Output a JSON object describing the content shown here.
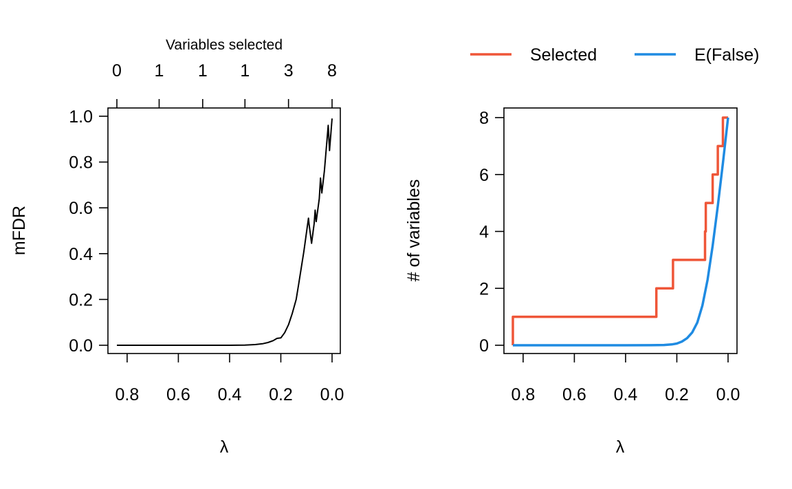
{
  "chart_data": [
    {
      "type": "line",
      "xlabel": "λ",
      "ylabel": "mFDR",
      "top_axis_title": "Variables selected",
      "xlim": [
        0.84,
        0.0
      ],
      "ylim": [
        0.0,
        1.0
      ],
      "x_ticks": [
        "0.8",
        "0.6",
        "0.4",
        "0.2",
        "0.0"
      ],
      "y_ticks": [
        "0.0",
        "0.2",
        "0.4",
        "0.6",
        "0.8",
        "1.0"
      ],
      "top_ticks": [
        {
          "lambda": 0.84,
          "label": "0"
        },
        {
          "lambda": 0.675,
          "label": "1"
        },
        {
          "lambda": 0.505,
          "label": "1"
        },
        {
          "lambda": 0.34,
          "label": "1"
        },
        {
          "lambda": 0.17,
          "label": "3"
        },
        {
          "lambda": 0.0,
          "label": "8"
        }
      ],
      "grid": false,
      "series": [
        {
          "color": "#000000",
          "x": [
            0.84,
            0.6,
            0.4,
            0.34,
            0.3,
            0.27,
            0.25,
            0.23,
            0.215,
            0.2,
            0.185,
            0.17,
            0.155,
            0.14,
            0.13,
            0.12,
            0.11,
            0.1,
            0.092,
            0.09,
            0.08,
            0.07,
            0.066,
            0.062,
            0.05,
            0.045,
            0.04,
            0.03,
            0.015,
            0.01,
            0.0
          ],
          "y": [
            0.0,
            0.0,
            0.0,
            0.001,
            0.003,
            0.007,
            0.012,
            0.02,
            0.03,
            0.032,
            0.055,
            0.09,
            0.14,
            0.2,
            0.27,
            0.34,
            0.41,
            0.49,
            0.555,
            0.53,
            0.445,
            0.53,
            0.59,
            0.54,
            0.64,
            0.73,
            0.665,
            0.76,
            0.96,
            0.85,
            0.99
          ]
        }
      ]
    },
    {
      "type": "line",
      "xlabel": "λ",
      "ylabel": "# of variables",
      "xlim": [
        0.84,
        0.0
      ],
      "ylim": [
        0,
        8
      ],
      "x_ticks": [
        "0.8",
        "0.6",
        "0.4",
        "0.2",
        "0.0"
      ],
      "y_ticks": [
        "0",
        "2",
        "4",
        "6",
        "8"
      ],
      "grid": false,
      "legend": {
        "position": "top",
        "orientation": "horizontal"
      },
      "series": [
        {
          "name": "Selected",
          "color": "#ef5638",
          "step": true,
          "x": [
            0.84,
            0.84,
            0.28,
            0.28,
            0.215,
            0.215,
            0.09,
            0.09,
            0.087,
            0.087,
            0.075,
            0.075,
            0.06,
            0.06,
            0.04,
            0.04,
            0.02,
            0.02,
            0.0
          ],
          "y": [
            0,
            1,
            1,
            2,
            2,
            3,
            3,
            4,
            4,
            5,
            5,
            5,
            5,
            6,
            6,
            7,
            7,
            8,
            8
          ]
        },
        {
          "name": "E(False)",
          "color": "#1f8be2",
          "x": [
            0.84,
            0.6,
            0.4,
            0.3,
            0.25,
            0.22,
            0.2,
            0.18,
            0.16,
            0.14,
            0.12,
            0.1,
            0.08,
            0.06,
            0.04,
            0.02,
            0.0
          ],
          "y": [
            0.0,
            0.0,
            0.0,
            0.003,
            0.01,
            0.03,
            0.06,
            0.13,
            0.25,
            0.45,
            0.8,
            1.4,
            2.3,
            3.5,
            4.9,
            6.4,
            8.0
          ]
        }
      ]
    }
  ]
}
